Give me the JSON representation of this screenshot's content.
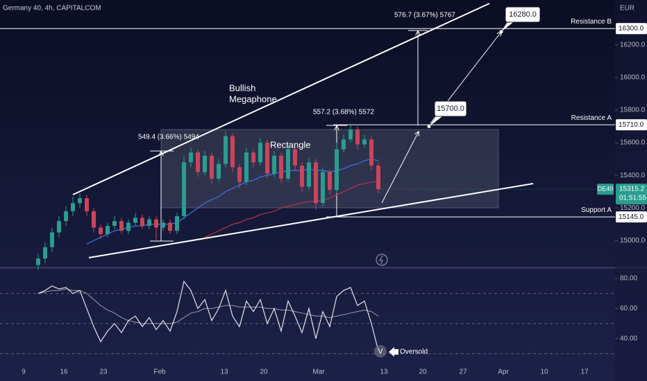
{
  "header": {
    "symbol": "Germany 40, 4h, CAPITALCOM",
    "currency": "EUR"
  },
  "chart_data": [
    {
      "type": "candlestick",
      "up_color": "#2a9d8f",
      "down_color": "#c8455a",
      "open": [
        14850,
        14890,
        14960,
        15050,
        15120,
        15180,
        15230,
        15260,
        15180,
        15080,
        15040,
        15090,
        15120,
        15060,
        15110,
        15140,
        15090,
        15130,
        15080,
        15110,
        15060,
        15150,
        15480,
        15540,
        15420,
        15520,
        15380,
        15470,
        15640,
        15450,
        15360,
        15540,
        15480,
        15600,
        15410,
        15520,
        15380,
        15560,
        15460,
        15330,
        15480,
        15230,
        15420,
        15310,
        15560,
        15620,
        15680,
        15590,
        15620,
        15460
      ],
      "high": [
        14920,
        14990,
        15080,
        15150,
        15210,
        15270,
        15290,
        15280,
        15200,
        15100,
        15110,
        15150,
        15140,
        15130,
        15170,
        15160,
        15150,
        15150,
        15130,
        15130,
        15170,
        15520,
        15570,
        15560,
        15550,
        15540,
        15500,
        15670,
        15660,
        15470,
        15570,
        15560,
        15630,
        15620,
        15550,
        15540,
        15590,
        15580,
        15480,
        15510,
        15500,
        15450,
        15440,
        15600,
        15650,
        15710,
        15700,
        15650,
        15640,
        15480
      ],
      "low": [
        14820,
        14860,
        14930,
        15020,
        15090,
        15150,
        15200,
        15150,
        15050,
        15010,
        15020,
        15070,
        15040,
        15040,
        15090,
        15070,
        15070,
        15000,
        15060,
        15040,
        15040,
        15130,
        15450,
        15390,
        15400,
        15350,
        15360,
        15450,
        15420,
        15320,
        15340,
        15450,
        15460,
        15380,
        15390,
        15350,
        15360,
        15430,
        15300,
        15310,
        15190,
        15210,
        15280,
        15290,
        15540,
        15600,
        15560,
        15570,
        15430,
        15290
      ],
      "close": [
        14890,
        14960,
        15050,
        15120,
        15180,
        15230,
        15260,
        15180,
        15080,
        15040,
        15090,
        15120,
        15060,
        15110,
        15140,
        15090,
        15130,
        15080,
        15110,
        15060,
        15150,
        15480,
        15540,
        15420,
        15520,
        15380,
        15470,
        15640,
        15450,
        15360,
        15540,
        15480,
        15600,
        15410,
        15520,
        15380,
        15560,
        15460,
        15330,
        15480,
        15230,
        15420,
        15310,
        15560,
        15620,
        15680,
        15590,
        15620,
        15460,
        15315
      ],
      "moving_averages": [
        {
          "color": "#3f6fe0",
          "values": [
            null,
            null,
            null,
            null,
            null,
            null,
            null,
            14980,
            15000,
            15020,
            15040,
            15060,
            15070,
            15080,
            15090,
            15090,
            15100,
            15100,
            15100,
            15100,
            15110,
            15140,
            15170,
            15200,
            15230,
            15250,
            15270,
            15300,
            15320,
            15340,
            15360,
            15370,
            15390,
            15400,
            15410,
            15420,
            15430,
            15430,
            15430,
            15440,
            15430,
            15430,
            15420,
            15430,
            15440,
            15460,
            15470,
            15490,
            15500,
            15490
          ]
        },
        {
          "color": "#b3314c",
          "values": [
            null,
            null,
            null,
            null,
            null,
            null,
            null,
            null,
            null,
            null,
            null,
            null,
            null,
            null,
            null,
            null,
            null,
            null,
            null,
            null,
            null,
            null,
            null,
            null,
            15020,
            15040,
            15060,
            15080,
            15100,
            15110,
            15130,
            15140,
            15160,
            15170,
            15180,
            15200,
            15210,
            15220,
            15230,
            15240,
            15240,
            15250,
            15260,
            15280,
            15300,
            15320,
            15340,
            15350,
            15360,
            15360
          ]
        }
      ],
      "ylim": [
        14840,
        16475
      ],
      "yticks": [
        {
          "value": 15000,
          "label": "15000.0"
        },
        {
          "value": 15200,
          "label": "15200.0"
        },
        {
          "value": 15400,
          "label": "15400.0"
        },
        {
          "value": 15600,
          "label": "15600.0"
        },
        {
          "value": 15800,
          "label": "15800.0"
        },
        {
          "value": 16000,
          "label": "16000.0"
        },
        {
          "value": 16200,
          "label": "16200.0"
        }
      ],
      "xticks": [
        "9",
        "16",
        "23",
        "Feb",
        "13",
        "20",
        "Mar",
        "13",
        "20",
        "27",
        "Apr",
        "10",
        "17"
      ],
      "levels": [
        {
          "name": "Resistance B",
          "value": 16300,
          "label": "16300.0"
        },
        {
          "name": "Resistance A",
          "value": 15710,
          "label": "15710.0"
        },
        {
          "name": "Support A",
          "value": 15145,
          "label": "15145.0"
        }
      ],
      "last_price": {
        "symbol": "DE40",
        "value": 15315.2,
        "countdown": "01:51:55"
      },
      "targets": [
        {
          "value": 15700,
          "label": "15700.0"
        },
        {
          "value": 16280,
          "label": "16280.0"
        }
      ],
      "annotations": [
        "Bullish",
        "Megaphone",
        "Rectangle",
        "549.4 (3.66%) 5494",
        "557.2 (3.68%) 5572",
        "576.7 (3.67%) 5767"
      ]
    },
    {
      "type": "line",
      "values": [
        70,
        72,
        75,
        73,
        74,
        70,
        72,
        60,
        48,
        38,
        45,
        50,
        44,
        52,
        55,
        48,
        54,
        46,
        52,
        45,
        58,
        78,
        72,
        60,
        66,
        52,
        60,
        72,
        55,
        48,
        65,
        58,
        66,
        50,
        60,
        45,
        65,
        55,
        44,
        60,
        40,
        58,
        48,
        68,
        72,
        74,
        62,
        65,
        50,
        32
      ],
      "ma": [
        70,
        71,
        72,
        72,
        73,
        72,
        72,
        70,
        66,
        62,
        59,
        57,
        54,
        52,
        51,
        50,
        50,
        50,
        50,
        50,
        51,
        54,
        57,
        58,
        60,
        60,
        61,
        62,
        62,
        61,
        61,
        61,
        61,
        60,
        60,
        59,
        59,
        58,
        57,
        56,
        55,
        55,
        54,
        55,
        56,
        57,
        58,
        59,
        58,
        55
      ],
      "color": "#e6e6ea",
      "ma_color": "#9a9cab",
      "levels": [
        70,
        50,
        30
      ],
      "ylim": [
        23.4,
        86.4
      ],
      "yticks": [
        {
          "value": 40,
          "label": "40.00"
        },
        {
          "value": 60,
          "label": "60.00"
        },
        {
          "value": 80,
          "label": "80.00"
        }
      ],
      "annotations": [
        "V",
        "Oversold"
      ]
    }
  ]
}
